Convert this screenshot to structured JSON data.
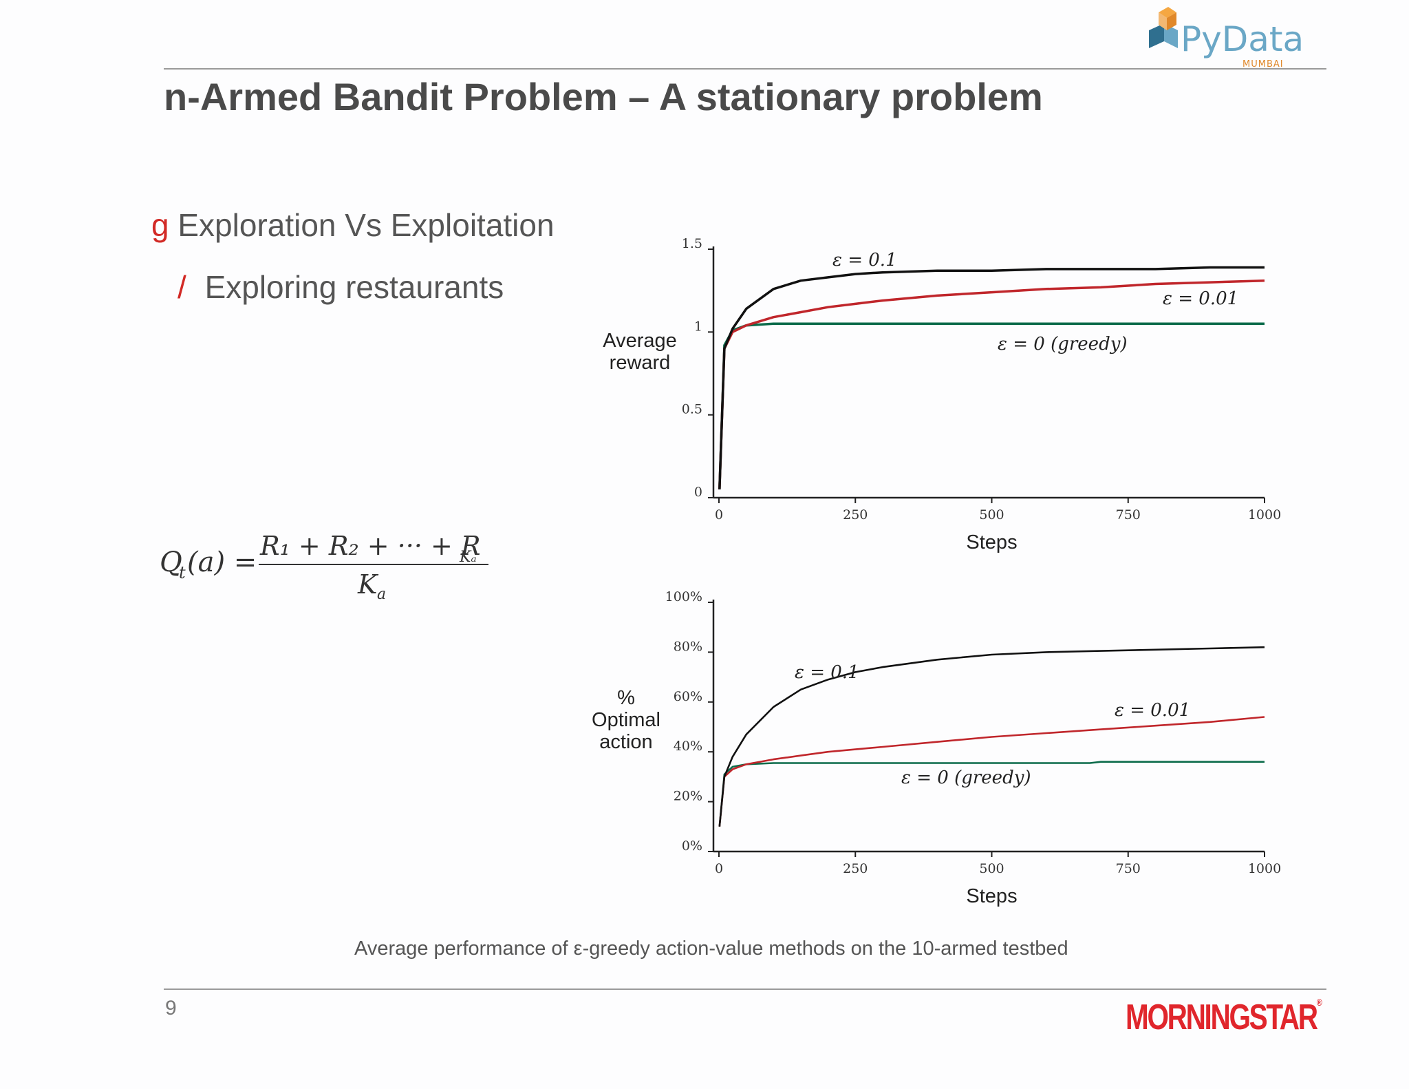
{
  "slide": {
    "title": "n-Armed Bandit Problem – A stationary problem",
    "bullets": [
      {
        "marker": "g",
        "text": "Exploration Vs Exploitation"
      },
      {
        "marker": "/",
        "text": "Exploring restaurants"
      }
    ],
    "caption": "Average performance of ε-greedy action-value methods on the 10-armed testbed",
    "page_number": "9",
    "logos": {
      "top": "PyData",
      "top_sub": "MUMBAI",
      "bottom": "MORNINGSTAR"
    },
    "accent_color": "#d22a26"
  },
  "formula": {
    "lhs": "Q",
    "lhs_sub": "t",
    "lhs_arg": "(a) =",
    "numerator": "R₁ + R₂ + ··· + R",
    "numerator_sub": "Kₐ",
    "denominator": "K",
    "denominator_sub": "a"
  },
  "chart_data": [
    {
      "type": "line",
      "ylabel": "Average reward",
      "xlabel": "Steps",
      "xlim": [
        0,
        1000
      ],
      "ylim": [
        0,
        1.5
      ],
      "xticks": [
        "0",
        "250",
        "500",
        "750",
        "1000"
      ],
      "yticks": [
        "0",
        "0.5",
        "1",
        "1.5"
      ],
      "series": [
        {
          "name": "ε = 0.1",
          "color": "#111111",
          "x": [
            1,
            10,
            25,
            50,
            100,
            150,
            200,
            250,
            300,
            400,
            500,
            600,
            700,
            800,
            900,
            1000
          ],
          "y": [
            0.05,
            0.9,
            1.02,
            1.14,
            1.26,
            1.31,
            1.33,
            1.35,
            1.36,
            1.37,
            1.37,
            1.38,
            1.38,
            1.38,
            1.39,
            1.39
          ]
        },
        {
          "name": "ε = 0.01",
          "color": "#c0262b",
          "x": [
            1,
            10,
            25,
            50,
            100,
            150,
            200,
            250,
            300,
            400,
            500,
            600,
            700,
            800,
            900,
            1000
          ],
          "y": [
            0.05,
            0.9,
            1.0,
            1.04,
            1.09,
            1.12,
            1.15,
            1.17,
            1.19,
            1.22,
            1.24,
            1.26,
            1.27,
            1.29,
            1.3,
            1.31
          ]
        },
        {
          "name": "ε = 0 (greedy)",
          "color": "#0b6b4a",
          "x": [
            1,
            10,
            25,
            50,
            100,
            200,
            300,
            400,
            500,
            600,
            700,
            800,
            900,
            1000
          ],
          "y": [
            0.05,
            0.92,
            1.01,
            1.04,
            1.05,
            1.05,
            1.05,
            1.05,
            1.05,
            1.05,
            1.05,
            1.05,
            1.05,
            1.05
          ]
        }
      ]
    },
    {
      "type": "line",
      "ylabel": "% Optimal action",
      "xlabel": "Steps",
      "xlim": [
        0,
        1000
      ],
      "ylim": [
        0,
        100
      ],
      "xticks": [
        "0",
        "250",
        "500",
        "750",
        "1000"
      ],
      "yticks": [
        "0%",
        "20%",
        "40%",
        "60%",
        "80%",
        "100%"
      ],
      "series": [
        {
          "name": "ε = 0.1",
          "color": "#111111",
          "x": [
            1,
            10,
            25,
            50,
            100,
            150,
            200,
            250,
            300,
            400,
            500,
            600,
            700,
            800,
            900,
            1000
          ],
          "y": [
            10,
            30,
            38,
            47,
            58,
            65,
            69,
            72,
            74,
            77,
            79,
            80,
            80.5,
            81,
            81.5,
            82
          ]
        },
        {
          "name": "ε = 0.01",
          "color": "#c0262b",
          "x": [
            1,
            10,
            25,
            50,
            100,
            150,
            200,
            250,
            300,
            400,
            500,
            600,
            700,
            800,
            900,
            1000
          ],
          "y": [
            10,
            30,
            33,
            35,
            37,
            38.5,
            40,
            41,
            42,
            44,
            46,
            47.5,
            49,
            50.5,
            52,
            54
          ]
        },
        {
          "name": "ε = 0 (greedy)",
          "color": "#0b6b4a",
          "x": [
            1,
            10,
            25,
            50,
            100,
            200,
            300,
            400,
            500,
            600,
            680,
            700,
            800,
            900,
            1000
          ],
          "y": [
            10,
            31,
            34,
            35,
            35.5,
            35.5,
            35.5,
            35.5,
            35.5,
            35.5,
            35.5,
            36,
            36,
            36,
            36
          ]
        }
      ]
    }
  ]
}
